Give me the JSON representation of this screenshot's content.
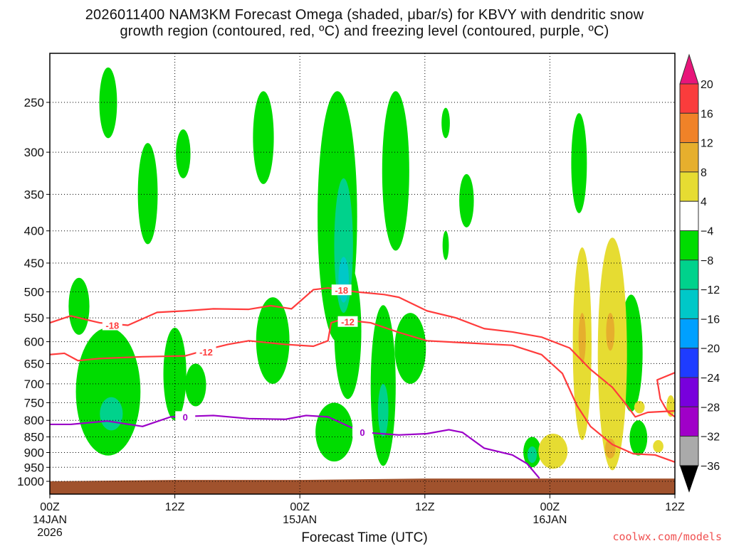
{
  "chart_data": {
    "type": "heatmap",
    "title_line1": "2026011400 NAM3KM Forecast Omega (shaded, μbar/s) for KBVY with dendritic snow",
    "title_line2": "growth region (contoured, red, ºC) and freezing level (contoured, purple, ºC)",
    "xlabel": "Forecast Time (UTC)",
    "ylabel": "",
    "credit": "coolwx.com/models",
    "xlim_hours": [
      0,
      60
    ],
    "ylim_hpa": [
      209,
      1048
    ],
    "y_scale": "log",
    "grid": true,
    "y_ticks": [
      250,
      300,
      350,
      400,
      450,
      500,
      550,
      600,
      650,
      700,
      750,
      800,
      850,
      900,
      950,
      1000
    ],
    "y_tick_labels": [
      "250",
      "300",
      "350",
      "400",
      "450",
      "500",
      "550",
      "600",
      "650",
      "700",
      "750",
      "800",
      "850",
      "900",
      "950",
      "1000"
    ],
    "x_ticks": [
      {
        "hour": 0,
        "l1": "00Z",
        "l2": "14JAN",
        "l3": "2026"
      },
      {
        "hour": 12,
        "l1": "12Z",
        "l2": "",
        "l3": ""
      },
      {
        "hour": 24,
        "l1": "00Z",
        "l2": "15JAN",
        "l3": ""
      },
      {
        "hour": 36,
        "l1": "12Z",
        "l2": "",
        "l3": ""
      },
      {
        "hour": 48,
        "l1": "00Z",
        "l2": "16JAN",
        "l3": ""
      },
      {
        "hour": 60,
        "l1": "12Z",
        "l2": "",
        "l3": ""
      }
    ],
    "colorbar": {
      "labels": [
        "20",
        "16",
        "12",
        "8",
        "4",
        "−4",
        "−8",
        "−12",
        "−16",
        "−20",
        "−24",
        "−28",
        "−32",
        "−36"
      ],
      "over_color": "#e8157a",
      "under_color": "#000000",
      "bins": [
        "#fa3c3c",
        "#f08228",
        "#e6af2d",
        "#e6dc32",
        "#ffffff",
        "#00dc00",
        "#00d28c",
        "#00c8c8",
        "#00a0ff",
        "#1e3cff",
        "#7800dc",
        "#a000c8",
        "#aaaaaa"
      ]
    },
    "level_colors": {
      "-6": "#00dc00",
      "-10": "#00d28c",
      "-14": "#00c8c8",
      "6": "#e6dc32",
      "10": "#e6af2d"
    },
    "omega_regions": [
      {
        "hour": 5.6,
        "p": [
          220,
          285
        ],
        "hw": 0.85,
        "v": -6
      },
      {
        "hour": 9.4,
        "p": [
          290,
          420
        ],
        "hw": 0.95,
        "v": -6
      },
      {
        "hour": 12.8,
        "p": [
          276,
          330
        ],
        "hw": 0.7,
        "v": -6
      },
      {
        "hour": 20.5,
        "p": [
          240,
          337
        ],
        "hw": 1.0,
        "v": -6
      },
      {
        "hour": 27.6,
        "p": [
          240,
          600
        ],
        "hw": 1.9,
        "v": -6
      },
      {
        "hour": 28.6,
        "p": [
          450,
          740
        ],
        "hw": 1.3,
        "v": -6
      },
      {
        "hour": 28.2,
        "p": [
          330,
          540
        ],
        "hw": 0.9,
        "v": -10
      },
      {
        "hour": 28.2,
        "p": [
          440,
          520
        ],
        "hw": 0.5,
        "v": -14
      },
      {
        "hour": 33.2,
        "p": [
          240,
          430
        ],
        "hw": 1.3,
        "v": -6
      },
      {
        "hour": 38.0,
        "p": [
          255,
          285
        ],
        "hw": 0.4,
        "v": -6
      },
      {
        "hour": 40.0,
        "p": [
          325,
          395
        ],
        "hw": 0.7,
        "v": -6
      },
      {
        "hour": 38.0,
        "p": [
          400,
          445
        ],
        "hw": 0.3,
        "v": -6
      },
      {
        "hour": 50.8,
        "p": [
          260,
          375
        ],
        "hw": 0.75,
        "v": -6
      },
      {
        "hour": 2.8,
        "p": [
          475,
          585
        ],
        "hw": 1.0,
        "v": -6
      },
      {
        "hour": 5.6,
        "p": [
          570,
          910
        ],
        "hw": 3.1,
        "v": -6
      },
      {
        "hour": 5.9,
        "p": [
          735,
          830
        ],
        "hw": 1.1,
        "v": -10
      },
      {
        "hour": 12.0,
        "p": [
          570,
          800
        ],
        "hw": 1.1,
        "v": -6
      },
      {
        "hour": 14.0,
        "p": [
          650,
          760
        ],
        "hw": 1.0,
        "v": -6
      },
      {
        "hour": 21.4,
        "p": [
          510,
          700
        ],
        "hw": 1.6,
        "v": -6
      },
      {
        "hour": 27.3,
        "p": [
          750,
          930
        ],
        "hw": 1.8,
        "v": -6
      },
      {
        "hour": 32.0,
        "p": [
          525,
          945
        ],
        "hw": 1.2,
        "v": -6
      },
      {
        "hour": 32.0,
        "p": [
          700,
          850
        ],
        "hw": 0.5,
        "v": -10
      },
      {
        "hour": 34.6,
        "p": [
          540,
          700
        ],
        "hw": 1.5,
        "v": -6
      },
      {
        "hour": 46.3,
        "p": [
          850,
          950
        ],
        "hw": 0.85,
        "v": -6
      },
      {
        "hour": 46.3,
        "p": [
          880,
          935
        ],
        "hw": 0.45,
        "v": -10
      },
      {
        "hour": 55.8,
        "p": [
          505,
          775
        ],
        "hw": 1.1,
        "v": -6
      },
      {
        "hour": 56.5,
        "p": [
          800,
          910
        ],
        "hw": 0.85,
        "v": -6
      },
      {
        "hour": 51.1,
        "p": [
          425,
          860
        ],
        "hw": 0.9,
        "v": 6
      },
      {
        "hour": 51.1,
        "p": [
          540,
          650
        ],
        "hw": 0.35,
        "v": 10
      },
      {
        "hour": 54.0,
        "p": [
          410,
          960
        ],
        "hw": 1.4,
        "v": 6
      },
      {
        "hour": 53.8,
        "p": [
          540,
          620
        ],
        "hw": 0.4,
        "v": 10
      },
      {
        "hour": 53.8,
        "p": [
          855,
          920
        ],
        "hw": 0.5,
        "v": 10
      },
      {
        "hour": 48.3,
        "p": [
          840,
          955
        ],
        "hw": 1.4,
        "v": 6
      },
      {
        "hour": 56.6,
        "p": [
          745,
          780
        ],
        "hw": 0.5,
        "v": 6
      },
      {
        "hour": 59.6,
        "p": [
          730,
          790
        ],
        "hw": 0.4,
        "v": 6
      },
      {
        "hour": 58.4,
        "p": [
          860,
          900
        ],
        "hw": 0.5,
        "v": 6
      }
    ],
    "contours": [
      {
        "name": "-18 C isotherm",
        "color": "#ff3c3c",
        "points": [
          [
            0,
            560
          ],
          [
            2,
            546
          ],
          [
            4.8,
            560
          ],
          [
            7.5,
            565
          ],
          [
            10.3,
            539
          ],
          [
            13,
            536
          ],
          [
            15.7,
            532
          ],
          [
            19.1,
            533
          ],
          [
            21.2,
            526
          ],
          [
            23.2,
            532
          ],
          [
            25.3,
            496
          ],
          [
            26.7,
            493
          ],
          [
            29.4,
            500
          ],
          [
            32.1,
            505
          ],
          [
            33.5,
            510
          ],
          [
            36.2,
            536
          ],
          [
            39,
            550
          ],
          [
            41.7,
            572
          ],
          [
            44.4,
            579
          ],
          [
            47.2,
            590
          ],
          [
            49.9,
            614
          ],
          [
            51.9,
            664
          ],
          [
            54,
            709
          ],
          [
            55.4,
            758
          ],
          [
            56.2,
            790
          ],
          [
            57.4,
            777
          ],
          [
            60,
            773
          ]
        ]
      },
      {
        "name": "-12 C isotherm",
        "color": "#ff3c3c",
        "points": [
          [
            0,
            629
          ],
          [
            1.4,
            626
          ],
          [
            2.7,
            643
          ],
          [
            4.8,
            638
          ],
          [
            8.9,
            634
          ],
          [
            13,
            632
          ],
          [
            15.7,
            614
          ],
          [
            17.1,
            606
          ],
          [
            19.1,
            598
          ],
          [
            22.6,
            606
          ],
          [
            25.3,
            610
          ],
          [
            26.7,
            598
          ],
          [
            27,
            560
          ],
          [
            28,
            553
          ],
          [
            30.8,
            560
          ],
          [
            33.5,
            580
          ],
          [
            36.2,
            598
          ],
          [
            40.3,
            603
          ],
          [
            44.4,
            608
          ],
          [
            47.2,
            629
          ],
          [
            49.2,
            674
          ],
          [
            50.6,
            758
          ],
          [
            51.9,
            818
          ],
          [
            54,
            874
          ],
          [
            56,
            904
          ],
          [
            58.1,
            908
          ],
          [
            60,
            932
          ]
        ]
      },
      {
        "name": "-12 C isotherm right",
        "color": "#ff3c3c",
        "points": [
          [
            60,
            672
          ],
          [
            58.3,
            690
          ],
          [
            58.6,
            740
          ],
          [
            59.3,
            775
          ],
          [
            60,
            790
          ]
        ]
      },
      {
        "name": "0 C freezing level",
        "color": "#9b00c8",
        "points": [
          [
            0,
            812
          ],
          [
            2,
            812
          ],
          [
            5.5,
            802
          ],
          [
            8.9,
            818
          ],
          [
            11.6,
            790
          ],
          [
            13.7,
            788
          ],
          [
            15.7,
            786
          ],
          [
            19.1,
            795
          ],
          [
            22.6,
            797
          ],
          [
            24.6,
            786
          ],
          [
            26.7,
            790
          ],
          [
            28.7,
            818
          ],
          [
            30.1,
            836
          ],
          [
            33.5,
            844
          ],
          [
            36.2,
            840
          ],
          [
            38.3,
            828
          ],
          [
            39.6,
            836
          ],
          [
            41.7,
            886
          ],
          [
            44.4,
            908
          ],
          [
            45.8,
            937
          ],
          [
            47,
            989
          ]
        ]
      }
    ],
    "contour_labels": [
      {
        "text": "-18",
        "hour": 6.0,
        "p": 565,
        "color": "#ff3c3c"
      },
      {
        "text": "-18",
        "hour": 28.0,
        "p": 497,
        "color": "#ff3c3c"
      },
      {
        "text": "-12",
        "hour": 28.6,
        "p": 558,
        "color": "#ff3c3c"
      },
      {
        "text": "-12",
        "hour": 15.0,
        "p": 623,
        "color": "#ff3c3c"
      },
      {
        "text": "0",
        "hour": 13.0,
        "p": 790,
        "color": "#9b00c8"
      },
      {
        "text": "0",
        "hour": 30.0,
        "p": 836,
        "color": "#9b00c8"
      }
    ],
    "ground": {
      "color": "#a0522d",
      "points": [
        [
          0,
          1000
        ],
        [
          12,
          995
        ],
        [
          24,
          995
        ],
        [
          36,
          990
        ],
        [
          48,
          990
        ],
        [
          60,
          990
        ]
      ]
    }
  }
}
